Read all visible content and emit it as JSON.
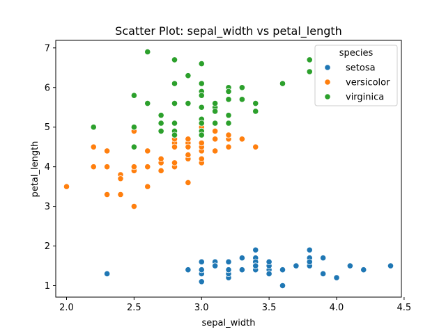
{
  "chart_data": {
    "type": "scatter",
    "title": "Scatter Plot: sepal_width vs petal_length",
    "xlabel": "sepal_width",
    "ylabel": "petal_length",
    "xlim": [
      1.92,
      4.48
    ],
    "ylim": [
      0.71,
      7.19
    ],
    "xticks": [
      2.0,
      2.5,
      3.0,
      3.5,
      4.0,
      4.5
    ],
    "xtick_labels": [
      "2.0",
      "2.5",
      "3.0",
      "3.5",
      "4.0",
      "4.5"
    ],
    "yticks": [
      1,
      2,
      3,
      4,
      5,
      6,
      7
    ],
    "ytick_labels": [
      "1",
      "2",
      "3",
      "4",
      "5",
      "6",
      "7"
    ],
    "grid": false,
    "legend": {
      "title": "species",
      "placement": "top-right"
    },
    "series": [
      {
        "name": "setosa",
        "color": "#1f77b4",
        "points": [
          [
            3.5,
            1.4
          ],
          [
            3.0,
            1.4
          ],
          [
            3.2,
            1.3
          ],
          [
            3.1,
            1.5
          ],
          [
            3.6,
            1.4
          ],
          [
            3.9,
            1.7
          ],
          [
            3.4,
            1.4
          ],
          [
            3.4,
            1.5
          ],
          [
            2.9,
            1.4
          ],
          [
            3.1,
            1.5
          ],
          [
            3.7,
            1.5
          ],
          [
            3.4,
            1.6
          ],
          [
            3.0,
            1.4
          ],
          [
            3.0,
            1.1
          ],
          [
            4.0,
            1.2
          ],
          [
            4.4,
            1.5
          ],
          [
            3.9,
            1.3
          ],
          [
            3.5,
            1.4
          ],
          [
            3.8,
            1.7
          ],
          [
            3.8,
            1.5
          ],
          [
            3.4,
            1.7
          ],
          [
            3.7,
            1.5
          ],
          [
            3.6,
            1.0
          ],
          [
            3.3,
            1.7
          ],
          [
            3.4,
            1.9
          ],
          [
            3.0,
            1.6
          ],
          [
            3.4,
            1.6
          ],
          [
            3.5,
            1.5
          ],
          [
            3.4,
            1.4
          ],
          [
            3.2,
            1.6
          ],
          [
            3.1,
            1.6
          ],
          [
            3.4,
            1.5
          ],
          [
            4.1,
            1.5
          ],
          [
            4.2,
            1.4
          ],
          [
            3.1,
            1.5
          ],
          [
            3.2,
            1.2
          ],
          [
            3.5,
            1.3
          ],
          [
            3.6,
            1.4
          ],
          [
            3.0,
            1.3
          ],
          [
            3.4,
            1.5
          ],
          [
            3.5,
            1.3
          ],
          [
            2.3,
            1.3
          ],
          [
            3.2,
            1.3
          ],
          [
            3.5,
            1.6
          ],
          [
            3.8,
            1.9
          ],
          [
            3.0,
            1.4
          ],
          [
            3.8,
            1.6
          ],
          [
            3.2,
            1.4
          ],
          [
            3.7,
            1.5
          ],
          [
            3.3,
            1.4
          ]
        ]
      },
      {
        "name": "versicolor",
        "color": "#ff7f0e",
        "points": [
          [
            3.2,
            4.7
          ],
          [
            3.2,
            4.5
          ],
          [
            3.1,
            4.9
          ],
          [
            2.3,
            4.0
          ],
          [
            2.8,
            4.6
          ],
          [
            2.8,
            4.5
          ],
          [
            3.3,
            4.7
          ],
          [
            2.4,
            3.3
          ],
          [
            2.9,
            4.6
          ],
          [
            2.7,
            3.9
          ],
          [
            2.0,
            3.5
          ],
          [
            3.0,
            4.2
          ],
          [
            2.2,
            4.0
          ],
          [
            2.9,
            4.7
          ],
          [
            2.9,
            3.6
          ],
          [
            3.1,
            4.4
          ],
          [
            3.0,
            4.5
          ],
          [
            2.7,
            4.1
          ],
          [
            2.2,
            4.5
          ],
          [
            2.5,
            3.9
          ],
          [
            3.2,
            4.8
          ],
          [
            2.8,
            4.0
          ],
          [
            2.5,
            4.9
          ],
          [
            2.8,
            4.7
          ],
          [
            2.9,
            4.3
          ],
          [
            3.0,
            4.4
          ],
          [
            2.8,
            4.8
          ],
          [
            3.0,
            5.0
          ],
          [
            2.9,
            4.5
          ],
          [
            2.6,
            3.5
          ],
          [
            2.4,
            3.8
          ],
          [
            2.4,
            3.7
          ],
          [
            2.7,
            3.9
          ],
          [
            2.7,
            5.1
          ],
          [
            3.0,
            4.5
          ],
          [
            3.4,
            4.5
          ],
          [
            3.1,
            4.7
          ],
          [
            2.3,
            4.4
          ],
          [
            3.0,
            4.1
          ],
          [
            2.5,
            4.0
          ],
          [
            2.6,
            4.4
          ],
          [
            3.0,
            4.6
          ],
          [
            2.6,
            4.0
          ],
          [
            2.3,
            3.3
          ],
          [
            2.7,
            4.2
          ],
          [
            3.0,
            4.2
          ],
          [
            2.9,
            4.2
          ],
          [
            2.9,
            4.3
          ],
          [
            2.5,
            3.0
          ],
          [
            2.8,
            4.1
          ]
        ]
      },
      {
        "name": "virginica",
        "color": "#2ca02c",
        "points": [
          [
            3.3,
            6.0
          ],
          [
            2.7,
            5.1
          ],
          [
            3.0,
            5.9
          ],
          [
            2.9,
            5.6
          ],
          [
            3.0,
            5.8
          ],
          [
            3.0,
            6.6
          ],
          [
            2.5,
            4.5
          ],
          [
            2.9,
            6.3
          ],
          [
            2.5,
            5.8
          ],
          [
            3.6,
            6.1
          ],
          [
            3.2,
            5.1
          ],
          [
            2.7,
            5.3
          ],
          [
            3.0,
            5.5
          ],
          [
            2.5,
            5.0
          ],
          [
            2.8,
            5.1
          ],
          [
            3.2,
            5.3
          ],
          [
            3.0,
            5.5
          ],
          [
            3.8,
            6.7
          ],
          [
            2.6,
            6.9
          ],
          [
            2.2,
            5.0
          ],
          [
            3.2,
            5.7
          ],
          [
            2.8,
            4.9
          ],
          [
            2.8,
            6.7
          ],
          [
            2.7,
            4.9
          ],
          [
            3.3,
            5.7
          ],
          [
            3.2,
            6.0
          ],
          [
            2.8,
            4.8
          ],
          [
            3.0,
            4.9
          ],
          [
            2.8,
            5.6
          ],
          [
            3.0,
            5.8
          ],
          [
            2.8,
            6.1
          ],
          [
            3.8,
            6.4
          ],
          [
            2.8,
            5.6
          ],
          [
            2.8,
            5.1
          ],
          [
            2.6,
            5.6
          ],
          [
            3.0,
            6.1
          ],
          [
            3.4,
            5.6
          ],
          [
            3.1,
            5.5
          ],
          [
            3.0,
            4.8
          ],
          [
            3.1,
            5.4
          ],
          [
            3.1,
            5.6
          ],
          [
            3.1,
            5.1
          ],
          [
            2.7,
            5.1
          ],
          [
            3.2,
            5.9
          ],
          [
            3.3,
            5.7
          ],
          [
            3.0,
            5.2
          ],
          [
            2.5,
            5.0
          ],
          [
            3.0,
            5.2
          ],
          [
            3.4,
            5.4
          ],
          [
            3.0,
            5.1
          ]
        ]
      }
    ]
  }
}
